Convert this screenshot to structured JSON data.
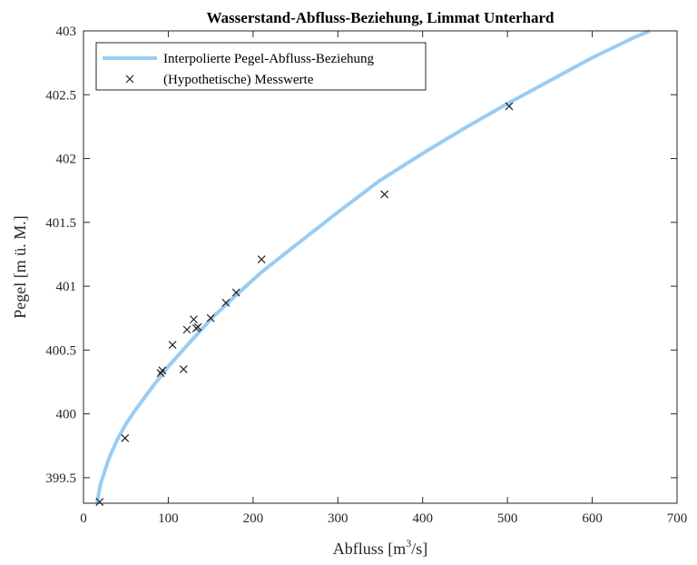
{
  "chart_data": {
    "type": "line",
    "title": "Wasserstand-Abfluss-Beziehung, Limmat Unterhard",
    "xlabel_prefix": "Abfluss [m",
    "xlabel_sup": "3",
    "xlabel_suffix": "/s]",
    "ylabel": "Pegel [m ü. M.]",
    "xlim": [
      0,
      700
    ],
    "ylim": [
      399.3,
      403
    ],
    "x_ticks": [
      0,
      100,
      200,
      300,
      400,
      500,
      600,
      700
    ],
    "x_tick_labels": [
      "0",
      "100",
      "200",
      "300",
      "400",
      "500",
      "600",
      "700"
    ],
    "y_ticks": [
      399.5,
      400,
      400.5,
      401,
      401.5,
      402,
      402.5,
      403
    ],
    "y_tick_labels": [
      "399.5",
      "400",
      "400.5",
      "401",
      "401.5",
      "402",
      "402.5",
      "403"
    ],
    "grid": false,
    "legend_position": "top-left",
    "colors": {
      "curve": "#99ccf2",
      "markers": "#222222",
      "axes": "#262626"
    },
    "series": [
      {
        "name": "Interpolierte Pegel-Abfluss-Beziehung",
        "kind": "line",
        "x": [
          16,
          20,
          30,
          40,
          50,
          60,
          80,
          100,
          120,
          150,
          180,
          210,
          250,
          300,
          350,
          400,
          450,
          500,
          550,
          600,
          650,
          668
        ],
        "y": [
          399.3,
          399.45,
          399.65,
          399.8,
          399.92,
          400.02,
          400.2,
          400.37,
          400.52,
          400.74,
          400.93,
          401.11,
          401.32,
          401.58,
          401.83,
          402.04,
          402.24,
          402.43,
          402.61,
          402.79,
          402.95,
          403.0
        ]
      },
      {
        "name": "(Hypothetische) Messwerte",
        "kind": "scatter",
        "marker": "x",
        "x": [
          19,
          49,
          91,
          93,
          105,
          118,
          122,
          130,
          133,
          135,
          150,
          168,
          180,
          210,
          355,
          502
        ],
        "y": [
          399.31,
          399.81,
          400.32,
          400.34,
          400.54,
          400.35,
          400.66,
          400.74,
          400.67,
          400.68,
          400.75,
          400.87,
          400.95,
          401.21,
          401.72,
          402.41
        ]
      }
    ]
  }
}
